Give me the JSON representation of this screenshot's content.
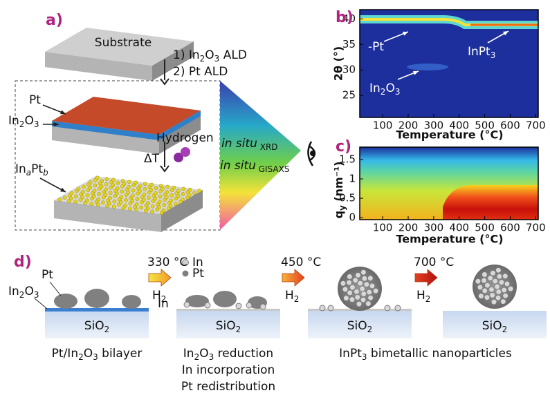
{
  "panel_a": {
    "label": "a)",
    "substrate": "Substrate",
    "step_1": [
      "1) In",
      "2",
      "O",
      "3",
      " ALD"
    ],
    "step_2": "2) Pt ALD",
    "pt": "Pt",
    "in2o3": [
      "In",
      "2",
      "O",
      "3"
    ],
    "hydrogen": "Hydrogen",
    "delta_t": "ΔT",
    "inapt": [
      "In",
      "a",
      "Pt",
      "b"
    ],
    "xrd": [
      "in situ",
      " XRD"
    ],
    "gisaxs": [
      "in situ",
      " GISAXS"
    ]
  },
  "panel_b": {
    "label": "b)",
    "y_title": "2θ (°)",
    "x_title": "Temperature (°C)",
    "xlim": [
      10,
      710
    ],
    "ylim": [
      20.7,
      41.8
    ],
    "xticks": [
      100,
      200,
      300,
      400,
      500,
      600,
      700
    ],
    "yticks": [
      25,
      30,
      35,
      40
    ],
    "pt": "-Pt",
    "inpt3": [
      "InPt",
      "3"
    ],
    "in2o3": [
      "In",
      "2",
      "O",
      "3"
    ]
  },
  "panel_c": {
    "label": "c)",
    "y_title": [
      "q",
      "y",
      " (nm⁻¹)"
    ],
    "x_title": "Temperature (°C)",
    "xlim": [
      10,
      710
    ],
    "ylim": [
      -0.05,
      1.82
    ],
    "xticks": [
      100,
      200,
      300,
      400,
      500,
      600,
      700
    ],
    "yticks": [
      0,
      0.5,
      1,
      1.5
    ]
  },
  "panel_d": {
    "label": "d)",
    "pt": "Pt",
    "in2o3": [
      "In",
      "2",
      "O",
      "3"
    ],
    "in": "In",
    "legend_in": "In",
    "legend_pt": "Pt",
    "step_1": "330 °C",
    "step_2": "450 °C",
    "step_3": "700 °C",
    "h2": [
      "H",
      "2"
    ],
    "sio2": [
      "SiO",
      "2"
    ],
    "caption_1": [
      "Pt/In",
      "2",
      "O",
      "3",
      " bilayer"
    ],
    "caption_2": [
      [
        "In",
        "2",
        "O",
        "3",
        " reduction"
      ],
      "In incorporation",
      "Pt redistribution"
    ],
    "caption_3": [
      "InPt",
      "3",
      " bimetallic nanoparticles"
    ]
  }
}
